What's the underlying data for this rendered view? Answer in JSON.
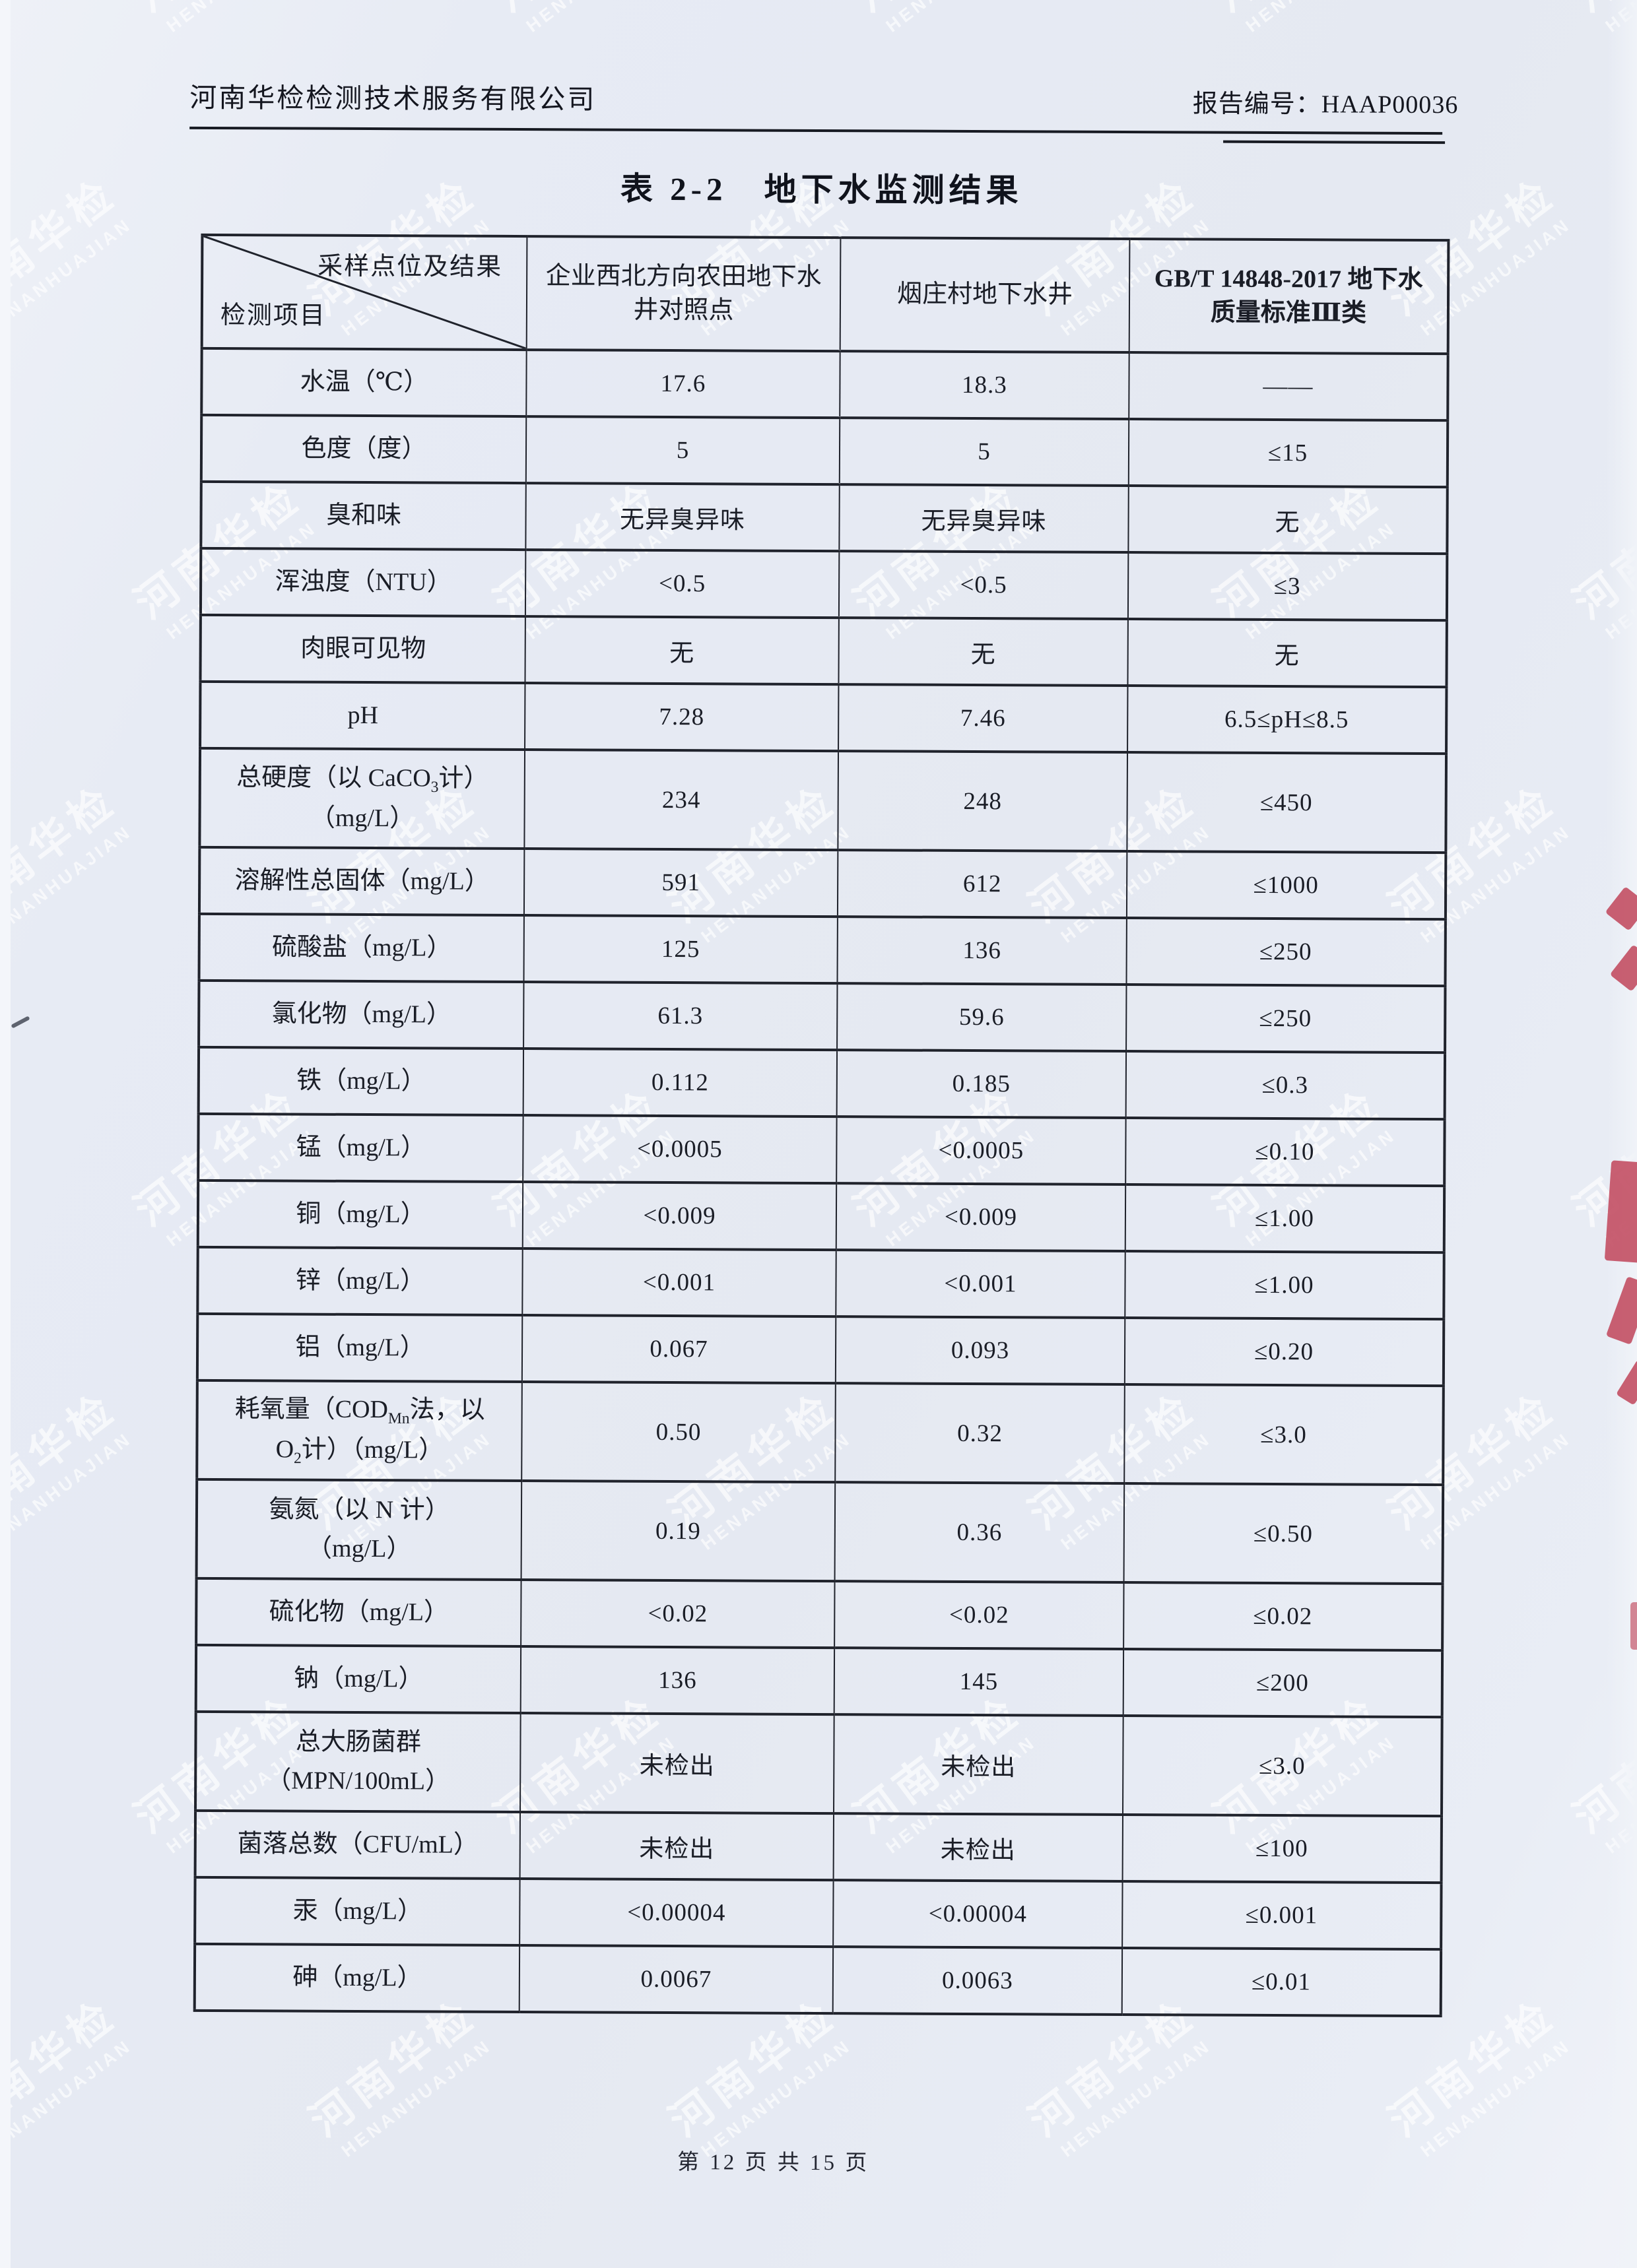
{
  "page": {
    "header": {
      "company": "河南华检检测技术服务有限公司",
      "report_no_label": "报告编号：",
      "report_no": "HAAP00036"
    },
    "title": "表 2-2　地下水监测结果",
    "footer": "第 12 页 共 15 页"
  },
  "watermark": {
    "text": "河南华检",
    "subtext": "HENANHUAJIAN"
  },
  "stamp_color": "#c14a5e",
  "table": {
    "corner": {
      "top": "采样点位及结果",
      "bottom": "检测项目"
    },
    "columns": [
      "企业西北方向农田地下水井对照点",
      "烟庄村地下水井",
      "GB/T 14848-2017 地下水质量标准Ⅲ类"
    ],
    "rows": [
      {
        "item": [
          "水温（℃）"
        ],
        "values": [
          "17.6",
          "18.3"
        ],
        "limit": "——"
      },
      {
        "item": [
          "色度（度）"
        ],
        "values": [
          "5",
          "5"
        ],
        "limit": "≤15"
      },
      {
        "item": [
          "臭和味"
        ],
        "values": [
          "无异臭异味",
          "无异臭异味"
        ],
        "limit": "无"
      },
      {
        "item": [
          "浑浊度（NTU）"
        ],
        "values": [
          "<0.5",
          "<0.5"
        ],
        "limit": "≤3"
      },
      {
        "item": [
          "肉眼可见物"
        ],
        "values": [
          "无",
          "无"
        ],
        "limit": "无"
      },
      {
        "item": [
          "pH"
        ],
        "values": [
          "7.28",
          "7.46"
        ],
        "limit": "6.5≤pH≤8.5"
      },
      {
        "item": [
          "总硬度（以 CaCO~3~计）",
          "（mg/L）"
        ],
        "values": [
          "234",
          "248"
        ],
        "limit": "≤450"
      },
      {
        "item": [
          "溶解性总固体（mg/L）"
        ],
        "values": [
          "591",
          "612"
        ],
        "limit": "≤1000"
      },
      {
        "item": [
          "硫酸盐（mg/L）"
        ],
        "values": [
          "125",
          "136"
        ],
        "limit": "≤250"
      },
      {
        "item": [
          "氯化物（mg/L）"
        ],
        "values": [
          "61.3",
          "59.6"
        ],
        "limit": "≤250"
      },
      {
        "item": [
          "铁（mg/L）"
        ],
        "values": [
          "0.112",
          "0.185"
        ],
        "limit": "≤0.3"
      },
      {
        "item": [
          "锰（mg/L）"
        ],
        "values": [
          "<0.0005",
          "<0.0005"
        ],
        "limit": "≤0.10"
      },
      {
        "item": [
          "铜（mg/L）"
        ],
        "values": [
          "<0.009",
          "<0.009"
        ],
        "limit": "≤1.00"
      },
      {
        "item": [
          "锌（mg/L）"
        ],
        "values": [
          "<0.001",
          "<0.001"
        ],
        "limit": "≤1.00"
      },
      {
        "item": [
          "铝（mg/L）"
        ],
        "values": [
          "0.067",
          "0.093"
        ],
        "limit": "≤0.20"
      },
      {
        "item": [
          "耗氧量（COD~Mn~法，以",
          "O~2~计）（mg/L）"
        ],
        "values": [
          "0.50",
          "0.32"
        ],
        "limit": "≤3.0"
      },
      {
        "item": [
          "氨氮（以 N 计）",
          "（mg/L）"
        ],
        "values": [
          "0.19",
          "0.36"
        ],
        "limit": "≤0.50"
      },
      {
        "item": [
          "硫化物（mg/L）"
        ],
        "values": [
          "<0.02",
          "<0.02"
        ],
        "limit": "≤0.02"
      },
      {
        "item": [
          "钠（mg/L）"
        ],
        "values": [
          "136",
          "145"
        ],
        "limit": "≤200"
      },
      {
        "item": [
          "总大肠菌群",
          "（MPN/100mL）"
        ],
        "values": [
          "未检出",
          "未检出"
        ],
        "limit": "≤3.0"
      },
      {
        "item": [
          "菌落总数（CFU/mL）"
        ],
        "values": [
          "未检出",
          "未检出"
        ],
        "limit": "≤100"
      },
      {
        "item": [
          "汞（mg/L）"
        ],
        "values": [
          "<0.00004",
          "<0.00004"
        ],
        "limit": "≤0.001"
      },
      {
        "item": [
          "砷（mg/L）"
        ],
        "values": [
          "0.0067",
          "0.0063"
        ],
        "limit": "≤0.01"
      }
    ]
  }
}
